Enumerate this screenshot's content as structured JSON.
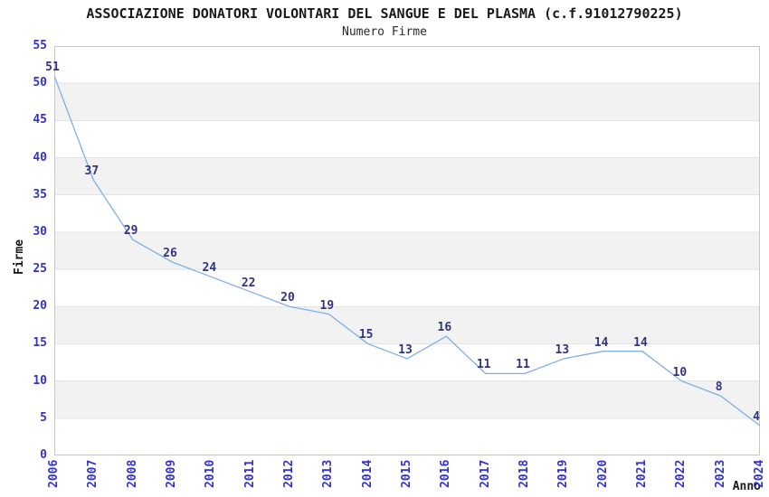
{
  "chart_data": {
    "type": "line",
    "title": "ASSOCIAZIONE DONATORI VOLONTARI DEL SANGUE E DEL PLASMA (c.f.91012790225)",
    "subtitle": "Numero Firme",
    "xlabel": "Anno",
    "ylabel": "Firme",
    "categories": [
      "2006",
      "2007",
      "2008",
      "2009",
      "2010",
      "2011",
      "2012",
      "2013",
      "2014",
      "2015",
      "2016",
      "2017",
      "2018",
      "2019",
      "2020",
      "2021",
      "2022",
      "2023",
      "2024"
    ],
    "values": [
      51,
      37,
      29,
      26,
      24,
      22,
      20,
      19,
      15,
      13,
      16,
      11,
      11,
      13,
      14,
      14,
      10,
      8,
      4
    ],
    "ylim": [
      0,
      55
    ],
    "ytick_step": 5,
    "grid": true,
    "legend": "none",
    "colors": {
      "line": "#7cb0e8",
      "tick_label": "#3333cc",
      "data_label": "#333380",
      "band": "#f2f2f2",
      "gridline": "#e3e3e3",
      "plot_border": "#c6c6c6",
      "title": "#1a1a1a"
    }
  }
}
